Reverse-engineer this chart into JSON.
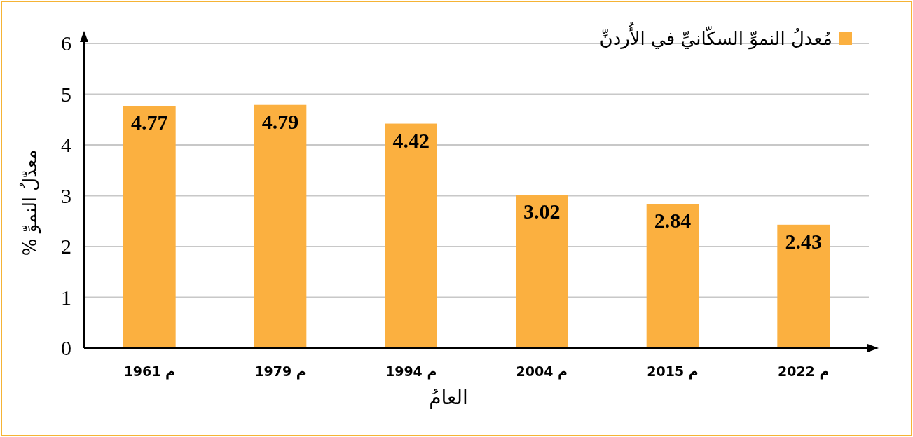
{
  "chart_data": {
    "type": "bar",
    "categories": [
      "1961 م",
      "1979 م",
      "1994 م",
      "2004 م",
      "2015 م",
      "2022 م"
    ],
    "series": [
      {
        "name": "مُعدلُ النموِّ السكّانيِّ في الأُردنِّ",
        "color": "#fbb040",
        "values": [
          4.77,
          4.79,
          4.42,
          3.02,
          2.84,
          2.43
        ]
      }
    ],
    "xlabel": "العامُ",
    "ylabel": "معدّلُ النموِّ %",
    "ylim": [
      0,
      6
    ],
    "yticks": [
      0,
      1,
      2,
      3,
      4,
      5,
      6
    ],
    "grid": "y",
    "legend": "top right",
    "data_labels": true
  }
}
